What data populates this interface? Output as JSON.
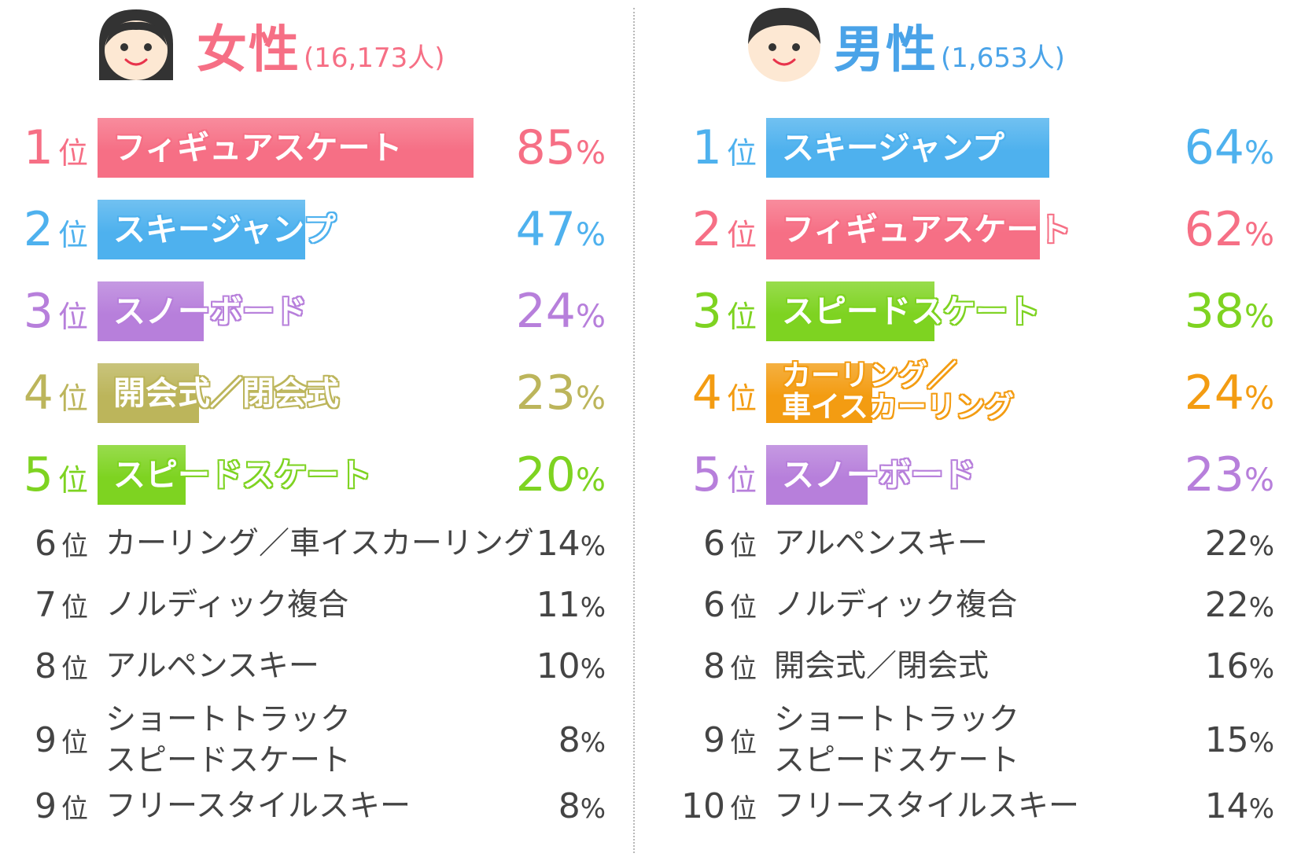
{
  "chart_data": [
    {
      "type": "bar",
      "title": "女性",
      "count": "(16,173人)",
      "color": "#f66f85",
      "units": {
        "rank": "位",
        "percent": "%"
      },
      "rankings": [
        {
          "rank": "1",
          "label": "フィギュアスケート",
          "value": 85,
          "color": "#f66f85"
        },
        {
          "rank": "2",
          "label": "スキージャンプ",
          "value": 47,
          "color": "#4eb1ee"
        },
        {
          "rank": "3",
          "label": "スノーボード",
          "value": 24,
          "color": "#b77fdb"
        },
        {
          "rank": "4",
          "label": "開会式／閉会式",
          "value": 23,
          "color": "#bcb55b"
        },
        {
          "rank": "5",
          "label": "スピードスケート",
          "value": 20,
          "color": "#7ed321"
        },
        {
          "rank": "6",
          "label": "カーリング／車イスカーリング",
          "value": 14
        },
        {
          "rank": "7",
          "label": "ノルディック複合",
          "value": 11
        },
        {
          "rank": "8",
          "label": "アルペンスキー",
          "value": 10
        },
        {
          "rank": "9",
          "label": "ショートトラック\nスピードスケート",
          "value": 8
        },
        {
          "rank": "9",
          "label": "フリースタイルスキー",
          "value": 8
        }
      ]
    },
    {
      "type": "bar",
      "title": "男性",
      "count": "(1,653人)",
      "color": "#4aa3e8",
      "units": {
        "rank": "位",
        "percent": "%"
      },
      "rankings": [
        {
          "rank": "1",
          "label": "スキージャンプ",
          "value": 64,
          "color": "#4eb1ee"
        },
        {
          "rank": "2",
          "label": "フィギュアスケート",
          "value": 62,
          "color": "#f66f85"
        },
        {
          "rank": "3",
          "label": "スピードスケート",
          "value": 38,
          "color": "#7ed321"
        },
        {
          "rank": "4",
          "label": "カーリング／\n車イスカーリング",
          "value": 24,
          "color": "#f39c12"
        },
        {
          "rank": "5",
          "label": "スノーボード",
          "value": 23,
          "color": "#b77fdb"
        },
        {
          "rank": "6",
          "label": "アルペンスキー",
          "value": 22
        },
        {
          "rank": "6",
          "label": "ノルディック複合",
          "value": 22
        },
        {
          "rank": "8",
          "label": "開会式／閉会式",
          "value": 16
        },
        {
          "rank": "9",
          "label": "ショートトラック\nスピードスケート",
          "value": 15
        },
        {
          "rank": "10",
          "label": "フリースタイルスキー",
          "value": 14
        }
      ]
    }
  ]
}
